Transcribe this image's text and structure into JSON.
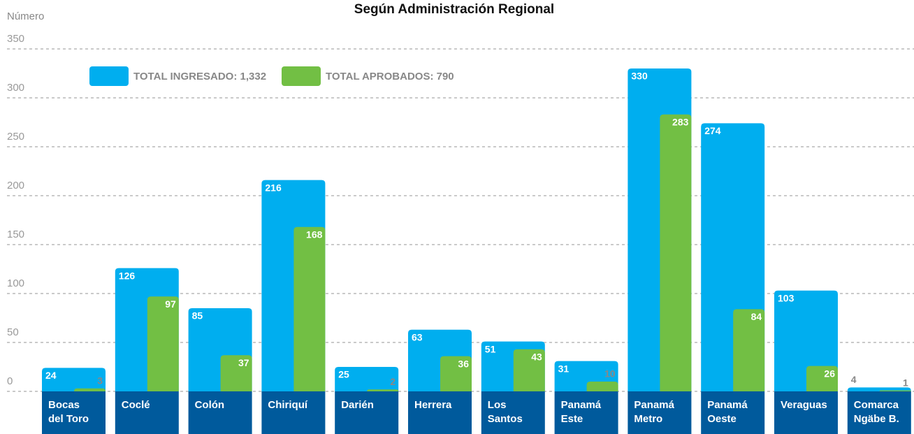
{
  "chart_data": {
    "type": "bar",
    "title": "Según Administración Regional",
    "y_axis_label": "Número",
    "categories": [
      [
        "Bocas",
        "del Toro"
      ],
      [
        "Coclé"
      ],
      [
        "Colón"
      ],
      [
        "Chiriquí"
      ],
      [
        "Darién"
      ],
      [
        "Herrera"
      ],
      [
        "Los",
        "Santos"
      ],
      [
        "Panamá",
        "Este"
      ],
      [
        "Panamá",
        "Metro"
      ],
      [
        "Panamá",
        "Oeste"
      ],
      [
        "Veraguas"
      ],
      [
        "Comarca",
        "Ngäbe B."
      ]
    ],
    "series": [
      {
        "name": "TOTAL INGRESADO: 1,332",
        "color": "#00aeef",
        "values": [
          24,
          126,
          85,
          216,
          25,
          63,
          51,
          31,
          330,
          274,
          103,
          4
        ]
      },
      {
        "name": "TOTAL APROBADOS: 790",
        "color": "#72bf44",
        "values": [
          3,
          97,
          37,
          168,
          2,
          36,
          43,
          10,
          283,
          84,
          26,
          1
        ]
      }
    ],
    "category_color": "#005a9c",
    "ylim": [
      0,
      350
    ],
    "yticks": [
      0,
      50,
      100,
      150,
      200,
      250,
      300,
      350
    ],
    "grid": true
  }
}
